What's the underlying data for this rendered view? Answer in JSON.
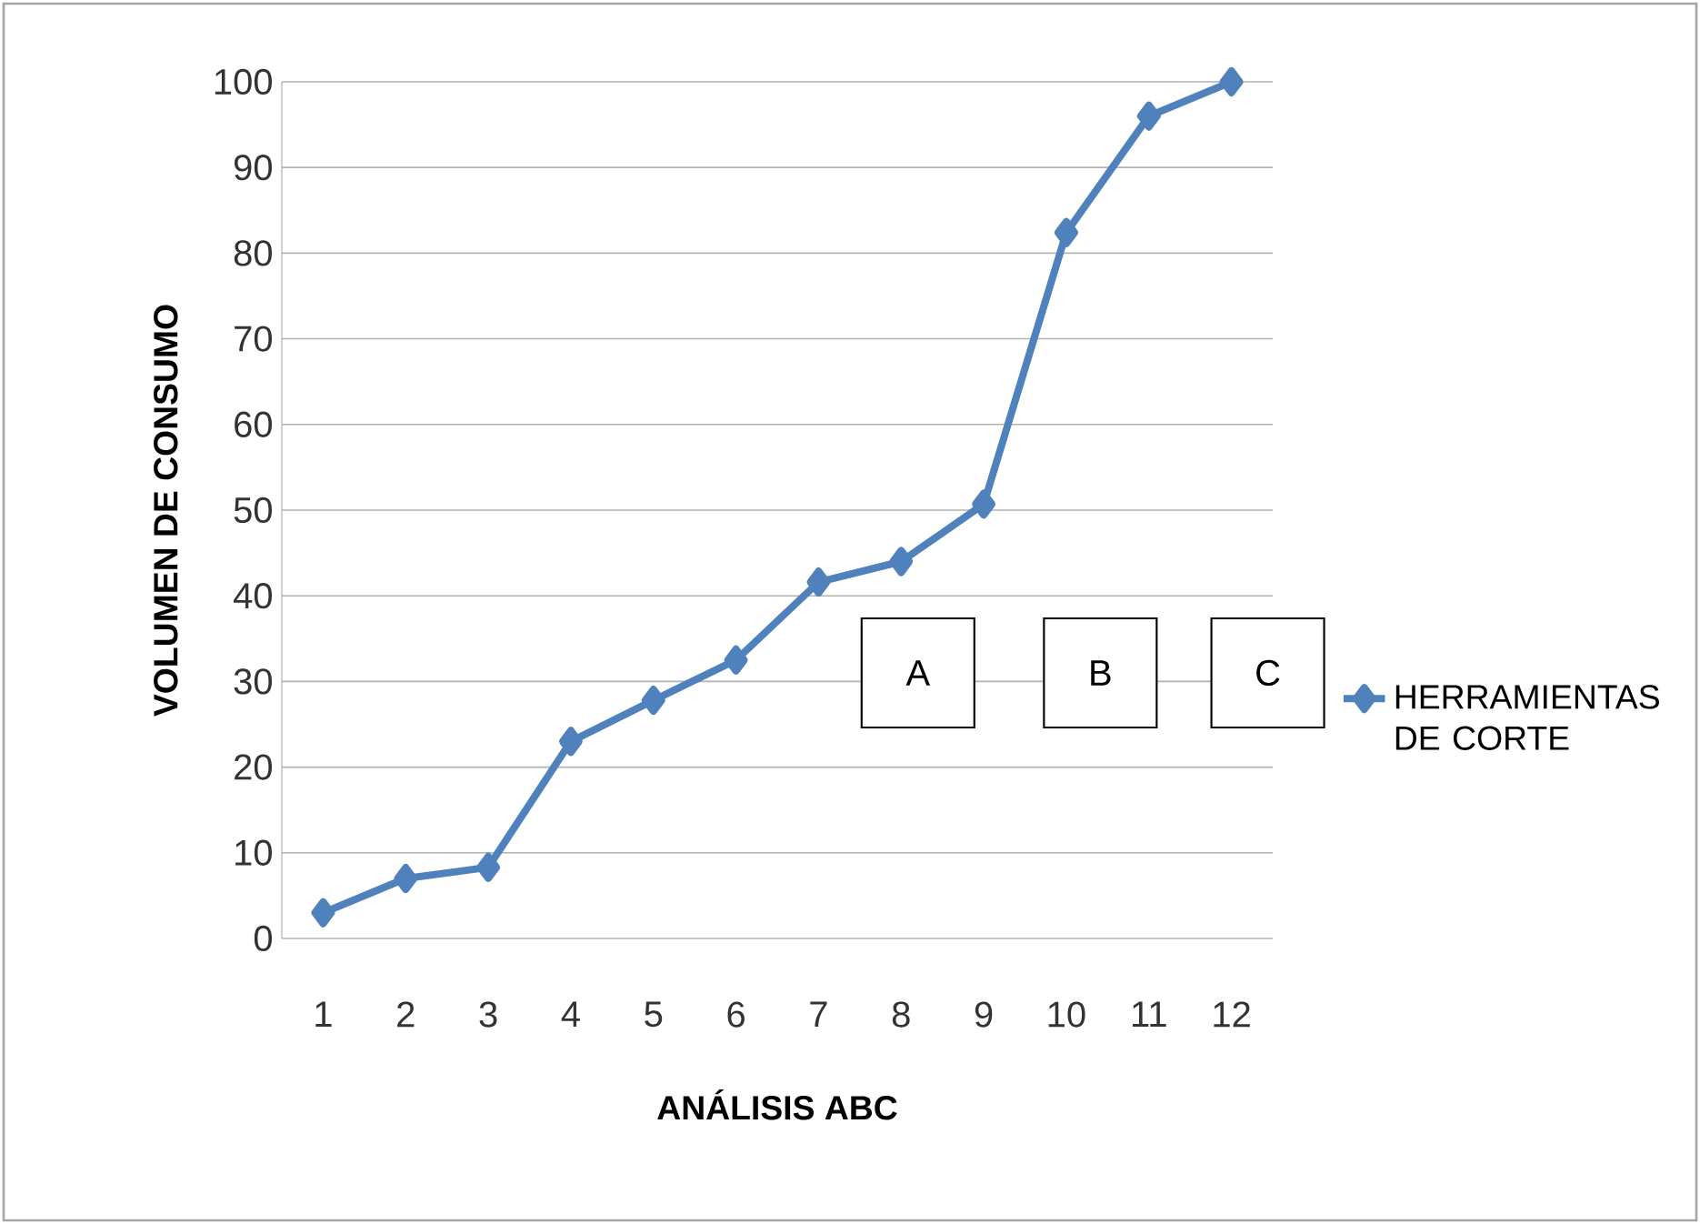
{
  "chart_data": {
    "type": "line",
    "xlabel": "ANÁLISIS ABC",
    "ylabel": "VOLUMEN DE CONSUMO",
    "categories": [
      "1",
      "2",
      "3",
      "4",
      "5",
      "6",
      "7",
      "8",
      "9",
      "10",
      "11",
      "12"
    ],
    "series": [
      {
        "name": "HERRAMIENTAS DE CORTE",
        "color": "#4f81bd",
        "values": [
          3,
          7,
          8.3,
          23,
          27.8,
          32.5,
          41.6,
          44,
          50.7,
          82.4,
          96,
          100
        ]
      }
    ],
    "ylim": [
      0,
      100
    ],
    "yticks": [
      0,
      10,
      20,
      30,
      40,
      50,
      60,
      70,
      80,
      90,
      100
    ],
    "grid": "y",
    "legend": "right",
    "marker": "diamond",
    "line_style": "solid",
    "annotations": [
      "A",
      "B",
      "C"
    ]
  }
}
